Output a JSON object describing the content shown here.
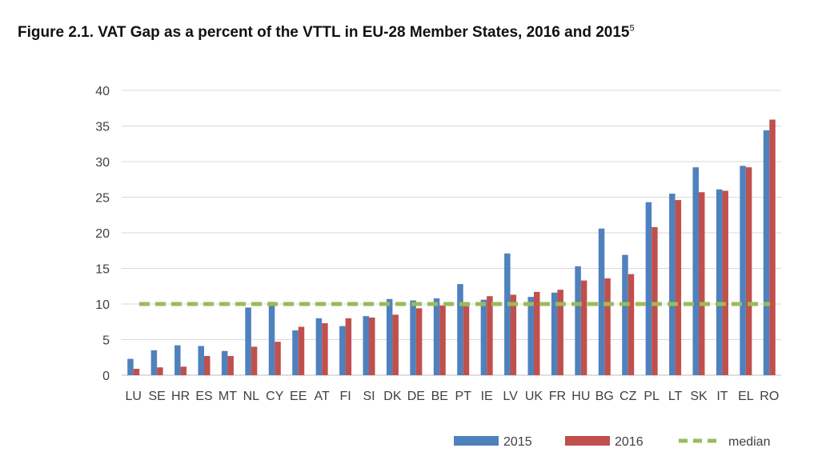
{
  "figure": {
    "title": "Figure 2.1.  VAT Gap as a percent of the VTTL in EU-28 Member States, 2016 and 2015",
    "footnote_mark": "5"
  },
  "chart_data": {
    "type": "bar",
    "title": "Figure 2.1.  VAT Gap as a percent of the VTTL in EU-28 Member States, 2016 and 2015",
    "xlabel": "",
    "ylabel": "",
    "ylim": [
      0,
      40
    ],
    "yticks": [
      0,
      5,
      10,
      15,
      20,
      25,
      30,
      35,
      40
    ],
    "grid": true,
    "legend_position": "bottom-right",
    "categories": [
      "LU",
      "SE",
      "HR",
      "ES",
      "MT",
      "NL",
      "CY",
      "EE",
      "AT",
      "FI",
      "SI",
      "DK",
      "DE",
      "BE",
      "PT",
      "IE",
      "LV",
      "UK",
      "FR",
      "HU",
      "BG",
      "CZ",
      "PL",
      "LT",
      "SK",
      "IT",
      "EL",
      "RO"
    ],
    "series": [
      {
        "name": "2015",
        "color": "#4F81BD",
        "values": [
          2.3,
          3.5,
          4.2,
          4.1,
          3.4,
          9.5,
          10.3,
          6.3,
          8.0,
          6.9,
          8.3,
          10.7,
          10.5,
          10.8,
          12.8,
          10.6,
          17.1,
          11.0,
          11.6,
          15.3,
          20.6,
          16.9,
          24.3,
          25.5,
          29.2,
          26.1,
          29.4,
          34.4
        ]
      },
      {
        "name": "2016",
        "color": "#C0504D",
        "values": [
          0.9,
          1.1,
          1.2,
          2.7,
          2.7,
          4.0,
          4.7,
          6.8,
          7.3,
          8.0,
          8.1,
          8.5,
          9.4,
          9.8,
          9.7,
          11.1,
          11.3,
          11.7,
          12.0,
          13.3,
          13.6,
          14.2,
          20.8,
          24.6,
          25.7,
          25.9,
          29.2,
          35.9
        ]
      },
      {
        "name": "median",
        "type": "line",
        "style": "dashed",
        "color": "#9BBB59",
        "values": [
          10,
          10,
          10,
          10,
          10,
          10,
          10,
          10,
          10,
          10,
          10,
          10,
          10,
          10,
          10,
          10,
          10,
          10,
          10,
          10,
          10,
          10,
          10,
          10,
          10,
          10,
          10,
          10
        ]
      }
    ]
  }
}
